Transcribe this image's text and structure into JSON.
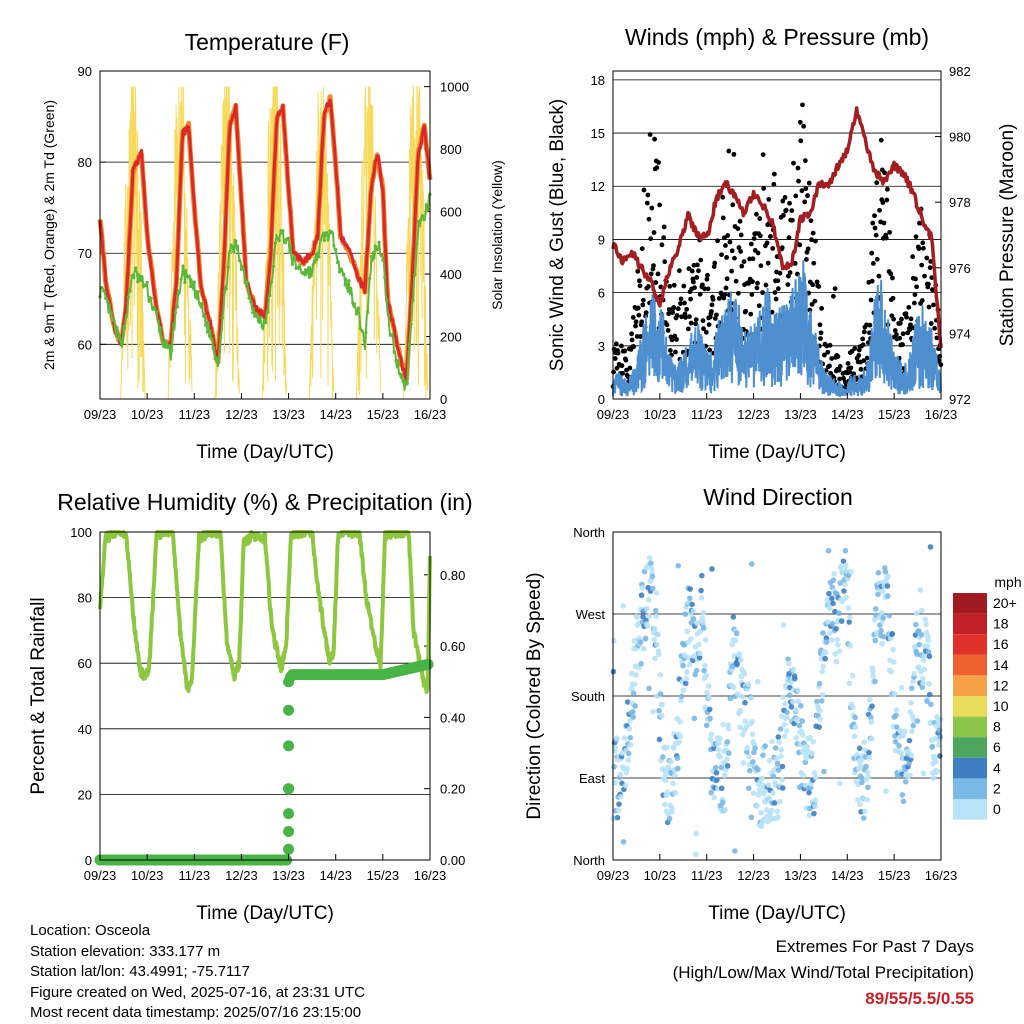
{
  "colors": {
    "temp_2m": "#d9282b",
    "temp_9m": "#f08a24",
    "dewpoint": "#5cb839",
    "solar": "#f7da5c",
    "wind": "#4d8fcf",
    "gust": "#000000",
    "pressure": "#a31e22",
    "rh": "#8dc63f",
    "precip": "#49b446"
  },
  "chart_data": [
    {
      "id": "temperature",
      "type": "line",
      "title": "Temperature (F)",
      "xlabel": "Time (Day/UTC)",
      "ylabel": "2m & 9m T (Red, Orange) & 2m Td (Green)",
      "y2label": "Solar Insolation (Yellow)",
      "xticks": [
        "09/23",
        "10/23",
        "11/23",
        "12/23",
        "13/23",
        "14/23",
        "15/23",
        "16/23"
      ],
      "ylim": [
        54,
        90
      ],
      "yticks": [
        60,
        70,
        80,
        90
      ],
      "y2lim": [
        0,
        1050
      ],
      "y2ticks": [
        0,
        200,
        400,
        600,
        800,
        1000
      ],
      "series": [
        {
          "kind": "temp",
          "x": [
            0,
            0.12,
            0.3,
            0.45,
            0.55,
            0.7,
            0.88,
            1.0,
            1.2,
            1.35,
            1.5,
            1.62,
            1.75,
            1.88,
            2.0,
            2.15,
            2.35,
            2.5,
            2.62,
            2.75,
            2.88,
            3.0,
            3.1,
            3.3,
            3.5,
            3.62,
            3.75,
            3.88,
            4.0,
            4.1,
            4.3,
            4.5,
            4.62,
            4.75,
            4.88,
            5.0,
            5.1,
            5.3,
            5.5,
            5.62,
            5.75,
            5.88,
            6.0,
            6.1,
            6.3,
            6.5,
            6.62,
            6.75,
            6.88,
            7.0
          ],
          "values": [
            74,
            67,
            62,
            60,
            64,
            79,
            81,
            72,
            64,
            60,
            60,
            67,
            83,
            84,
            75,
            66,
            62,
            58,
            68,
            84,
            86,
            76,
            67,
            64,
            63,
            70,
            85,
            86,
            77,
            70,
            69,
            70,
            72,
            85,
            87,
            80,
            72,
            70,
            67,
            66,
            77,
            81,
            77,
            65,
            60,
            56,
            67,
            81,
            84,
            78
          ]
        },
        {
          "kind": "dewpoint",
          "x": [
            0,
            0.12,
            0.3,
            0.45,
            0.55,
            0.7,
            0.88,
            1.0,
            1.2,
            1.35,
            1.5,
            1.62,
            1.75,
            1.88,
            2.0,
            2.15,
            2.35,
            2.5,
            2.62,
            2.75,
            2.88,
            3.0,
            3.1,
            3.3,
            3.5,
            3.62,
            3.75,
            3.88,
            4.0,
            4.1,
            4.3,
            4.5,
            4.62,
            4.75,
            4.88,
            5.0,
            5.1,
            5.3,
            5.5,
            5.62,
            5.75,
            5.88,
            6.0,
            6.1,
            6.3,
            6.5,
            6.62,
            6.75,
            6.88,
            7.0
          ],
          "values": [
            66,
            65,
            62,
            60,
            63,
            68,
            67,
            66,
            63,
            60,
            59,
            64,
            68,
            67,
            66,
            64,
            61,
            58,
            64,
            70,
            71,
            69,
            67,
            63,
            62,
            66,
            72,
            72,
            71,
            69,
            68,
            68,
            70,
            72,
            72,
            71,
            68,
            66,
            63,
            60,
            69,
            71,
            70,
            63,
            58,
            55,
            64,
            73,
            74,
            76
          ]
        },
        {
          "kind": "solar",
          "x": [
            0.45,
            0.58,
            0.7,
            0.82,
            0.95,
            1.45,
            1.58,
            1.7,
            1.82,
            1.95,
            2.45,
            2.58,
            2.7,
            2.82,
            2.95,
            3.45,
            3.58,
            3.7,
            3.82,
            3.95,
            4.45,
            4.58,
            4.7,
            4.82,
            4.95,
            5.45,
            5.58,
            5.7,
            5.82,
            5.95,
            6.45,
            6.58,
            6.7,
            6.82,
            6.95
          ],
          "values": [
            0,
            600,
            950,
            700,
            0,
            0,
            500,
            880,
            400,
            0,
            0,
            650,
            900,
            500,
            0,
            0,
            700,
            980,
            600,
            0,
            0,
            500,
            850,
            750,
            0,
            0,
            600,
            900,
            650,
            0,
            0,
            550,
            940,
            500,
            0
          ]
        }
      ]
    },
    {
      "id": "wind",
      "type": "scatter",
      "title": "Winds (mph) & Pressure (mb)",
      "xlabel": "Time (Day/UTC)",
      "ylabel": "Sonic Wind & Gust (Blue, Black)",
      "y2label": "Station Pressure (Maroon)",
      "xticks": [
        "09/23",
        "10/23",
        "11/23",
        "12/23",
        "13/23",
        "14/23",
        "15/23",
        "16/23"
      ],
      "ylim": [
        0,
        18.5
      ],
      "yticks": [
        0,
        3,
        6,
        9,
        12,
        15,
        18
      ],
      "y2lim": [
        972,
        982
      ],
      "y2ticks": [
        972,
        974,
        976,
        978,
        980,
        982
      ],
      "series": [
        {
          "kind": "gust",
          "x": [
            0,
            0.15,
            0.3,
            0.45,
            0.6,
            0.75,
            0.9,
            1.05,
            1.2,
            1.35,
            1.5,
            1.65,
            1.8,
            1.95,
            2.1,
            2.25,
            2.4,
            2.55,
            2.7,
            2.85,
            3.0,
            3.15,
            3.3,
            3.45,
            3.6,
            3.75,
            3.9,
            4.05,
            4.2,
            4.35,
            4.5,
            4.65,
            4.8,
            4.95,
            5.1,
            5.25,
            5.4,
            5.55,
            5.7,
            5.85,
            6.0,
            6.15,
            6.3,
            6.45,
            6.6,
            6.75,
            6.9,
            7.0
          ],
          "values": [
            2,
            2,
            1.5,
            3,
            6,
            9,
            10,
            8,
            4,
            3,
            4,
            5,
            6,
            5,
            4,
            6,
            8,
            9,
            7,
            5,
            6,
            8,
            9,
            8,
            7,
            7,
            9,
            11,
            8,
            5,
            3,
            2,
            1.5,
            1,
            2,
            2,
            3,
            8,
            10,
            7,
            4,
            3,
            3,
            6,
            7,
            6,
            4,
            2
          ]
        },
        {
          "kind": "wind",
          "x": [
            0,
            0.15,
            0.3,
            0.45,
            0.6,
            0.75,
            0.9,
            1.05,
            1.2,
            1.35,
            1.5,
            1.65,
            1.8,
            1.95,
            2.1,
            2.25,
            2.4,
            2.55,
            2.7,
            2.85,
            3.0,
            3.15,
            3.3,
            3.45,
            3.6,
            3.75,
            3.9,
            4.05,
            4.2,
            4.35,
            4.5,
            4.65,
            4.8,
            4.95,
            5.1,
            5.25,
            5.4,
            5.55,
            5.7,
            5.85,
            6.0,
            6.15,
            6.3,
            6.45,
            6.6,
            6.75,
            6.9,
            7.0
          ],
          "values": [
            0.8,
            0.8,
            0.6,
            1,
            2,
            3,
            3.5,
            3,
            1.5,
            1,
            1.5,
            2,
            2.5,
            2,
            1.5,
            2.5,
            3,
            3.5,
            3,
            2,
            2.5,
            3,
            3.5,
            3,
            3,
            3,
            4,
            4.5,
            3,
            2,
            1,
            0.8,
            0.6,
            0.4,
            0.8,
            0.8,
            1,
            3,
            4,
            3,
            1.5,
            1.2,
            1.2,
            2.5,
            3,
            2.5,
            1.5,
            0.8
          ]
        },
        {
          "kind": "pressure",
          "x": [
            0,
            0.2,
            0.4,
            0.6,
            0.8,
            1.0,
            1.2,
            1.4,
            1.6,
            1.8,
            2.0,
            2.2,
            2.4,
            2.6,
            2.8,
            3.0,
            3.2,
            3.4,
            3.6,
            3.8,
            4.0,
            4.2,
            4.4,
            4.6,
            4.8,
            5.0,
            5.2,
            5.4,
            5.6,
            5.8,
            6.0,
            6.2,
            6.4,
            6.6,
            6.8,
            7.0
          ],
          "values": [
            976.7,
            976.2,
            976.5,
            976.0,
            975.6,
            974.9,
            975.9,
            976.6,
            977.6,
            977.0,
            976.9,
            978.1,
            978.6,
            978.2,
            977.6,
            978.3,
            977.9,
            977.4,
            976.1,
            976.0,
            977.5,
            977.6,
            978.6,
            978.5,
            979.1,
            979.6,
            980.8,
            979.8,
            978.9,
            978.6,
            979.1,
            978.9,
            978.3,
            977.5,
            976.9,
            973.5
          ]
        }
      ]
    },
    {
      "id": "rh",
      "type": "line",
      "title": "Relative Humidity (%) & Precipitation (in)",
      "xlabel": "Time (Day/UTC)",
      "ylabel": "Percent & Total Rainfall",
      "xticks": [
        "09/23",
        "10/23",
        "11/23",
        "12/23",
        "13/23",
        "14/23",
        "15/23",
        "16/23"
      ],
      "ylim": [
        0,
        100
      ],
      "yticks": [
        0,
        20,
        40,
        60,
        80,
        100
      ],
      "y2lim": [
        0,
        0.92
      ],
      "y2ticks": [
        "0.00",
        "0.20",
        "0.40",
        "0.60",
        "0.80"
      ],
      "series": [
        {
          "kind": "rh",
          "x": [
            0,
            0.12,
            0.3,
            0.55,
            0.7,
            0.85,
            0.95,
            1.05,
            1.2,
            1.4,
            1.55,
            1.7,
            1.85,
            1.95,
            2.1,
            2.35,
            2.55,
            2.7,
            2.85,
            2.95,
            3.05,
            3.25,
            3.5,
            3.65,
            3.85,
            3.95,
            4.05,
            4.25,
            4.5,
            4.6,
            4.85,
            4.95,
            5.05,
            5.2,
            5.5,
            5.65,
            5.85,
            5.95,
            6.05,
            6.25,
            6.55,
            6.65,
            6.85,
            6.95,
            7.0
          ],
          "values": [
            78,
            98,
            100,
            100,
            75,
            58,
            55,
            60,
            99,
            100,
            100,
            70,
            52,
            55,
            98,
            100,
            100,
            65,
            56,
            60,
            97,
            99,
            98,
            70,
            58,
            66,
            99,
            100,
            100,
            85,
            61,
            62,
            99,
            100,
            100,
            80,
            65,
            60,
            99,
            100,
            100,
            70,
            55,
            52,
            92
          ]
        },
        {
          "kind": "precip",
          "x": [
            0,
            1,
            2,
            3,
            3.97,
            4.0,
            4.02,
            4.05,
            5,
            6,
            7.0
          ],
          "values": [
            0,
            0,
            0,
            0,
            0,
            0.2,
            0.5,
            0.52,
            0.52,
            0.52,
            0.55
          ]
        }
      ]
    },
    {
      "id": "direction",
      "type": "scatter",
      "title": "Wind Direction",
      "xlabel": "Time (Day/UTC)",
      "ylabel": "Direction (Colored By Speed)",
      "xticks": [
        "09/23",
        "10/23",
        "11/23",
        "12/23",
        "13/23",
        "14/23",
        "15/23",
        "16/23"
      ],
      "yticks": [
        "North",
        "East",
        "South",
        "West",
        "North"
      ],
      "colorbar_title": "mph",
      "colorbar_labels": [
        "20+",
        "18",
        "16",
        "14",
        "12",
        "10",
        "8",
        "6",
        "4",
        "2",
        "0"
      ],
      "colorbar_colors": [
        "#a11a1f",
        "#c1222a",
        "#e0322b",
        "#ef622f",
        "#f7a146",
        "#e8dc5a",
        "#8cc549",
        "#4da65e",
        "#3e7fc2",
        "#7ab8e5",
        "#b8e2f7"
      ],
      "series": [
        {
          "kind": "direction",
          "x": [
            0.1,
            0.3,
            0.55,
            0.7,
            0.85,
            1.1,
            1.3,
            1.6,
            1.75,
            1.9,
            2.1,
            2.4,
            2.55,
            2.75,
            2.9,
            3.1,
            3.35,
            3.55,
            3.7,
            3.85,
            4.1,
            4.3,
            4.6,
            4.8,
            4.95,
            5.2,
            5.4,
            5.65,
            5.85,
            6.1,
            6.3,
            6.5,
            6.7,
            6.85
          ],
          "values": [
            90,
            110,
            250,
            280,
            300,
            80,
            95,
            260,
            240,
            270,
            100,
            90,
            230,
            180,
            150,
            80,
            85,
            90,
            170,
            200,
            90,
            95,
            300,
            250,
            330,
            80,
            90,
            270,
            290,
            100,
            110,
            240,
            220,
            120
          ]
        }
      ]
    }
  ],
  "footer": {
    "location": "Location: Osceola",
    "elevation": "Station elevation: 333.177 m",
    "latlon": "Station lat/lon: 43.4991; -75.7117",
    "created": "Figure created on Wed, 2025-07-16, at 23:31 UTC",
    "recent": "Most recent data timestamp: 2025/07/16 23:15:00",
    "extremes_title": "Extremes For Past 7 Days",
    "extremes_sub": "(High/Low/Max Wind/Total Precipitation)",
    "extremes_value": "89/55/5.5/0.55"
  }
}
